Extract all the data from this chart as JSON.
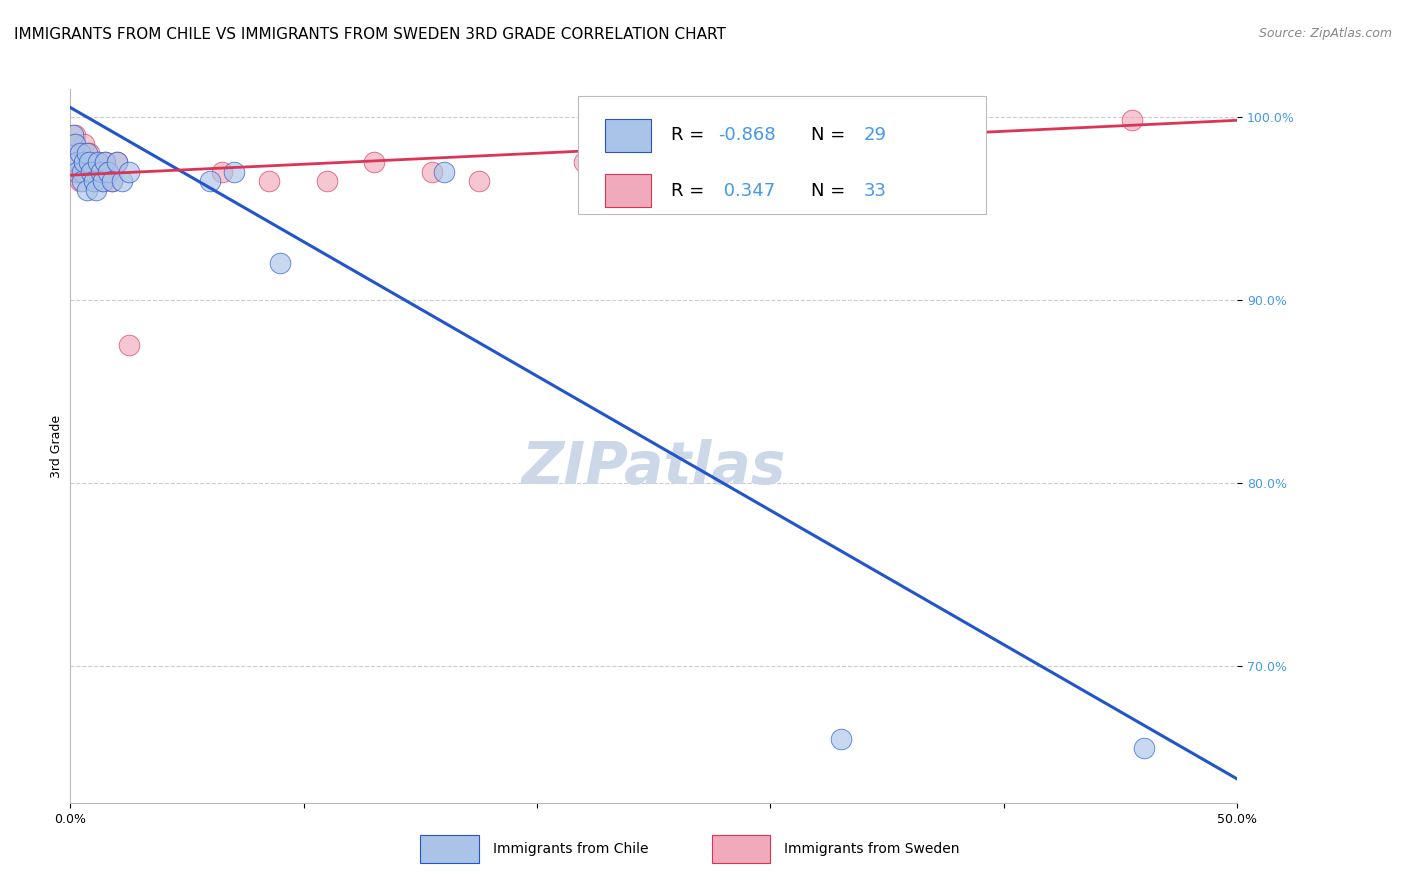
{
  "title": "IMMIGRANTS FROM CHILE VS IMMIGRANTS FROM SWEDEN 3RD GRADE CORRELATION CHART",
  "source": "Source: ZipAtlas.com",
  "ylabel": "3rd Grade",
  "xlim": [
    0.0,
    0.5
  ],
  "ylim": [
    0.625,
    1.015
  ],
  "yticks": [
    0.7,
    0.8,
    0.9,
    1.0
  ],
  "ytick_labels": [
    "70.0%",
    "80.0%",
    "90.0%",
    "100.0%"
  ],
  "xticks": [
    0.0,
    0.1,
    0.2,
    0.3,
    0.4,
    0.5
  ],
  "xtick_labels": [
    "0.0%",
    "",
    "",
    "",
    "",
    "50.0%"
  ],
  "chile_R": -0.868,
  "chile_N": 29,
  "sweden_R": 0.347,
  "sweden_N": 33,
  "chile_color": "#aac4e8",
  "sweden_color": "#f0aabb",
  "line_chile_color": "#2255cc",
  "line_sweden_color": "#dd3355",
  "watermark": "ZIPatlas",
  "chile_scatter_x": [
    0.001,
    0.002,
    0.003,
    0.003,
    0.004,
    0.005,
    0.005,
    0.006,
    0.007,
    0.007,
    0.008,
    0.009,
    0.01,
    0.011,
    0.012,
    0.013,
    0.014,
    0.015,
    0.016,
    0.018,
    0.02,
    0.022,
    0.025,
    0.06,
    0.07,
    0.09,
    0.16,
    0.33,
    0.46
  ],
  "chile_scatter_y": [
    0.99,
    0.985,
    0.975,
    0.97,
    0.98,
    0.97,
    0.965,
    0.975,
    0.98,
    0.96,
    0.975,
    0.97,
    0.965,
    0.96,
    0.975,
    0.97,
    0.965,
    0.975,
    0.97,
    0.965,
    0.975,
    0.965,
    0.97,
    0.965,
    0.97,
    0.92,
    0.97,
    0.66,
    0.655
  ],
  "sweden_scatter_x": [
    0.001,
    0.002,
    0.003,
    0.004,
    0.004,
    0.005,
    0.006,
    0.007,
    0.008,
    0.009,
    0.01,
    0.011,
    0.012,
    0.014,
    0.015,
    0.016,
    0.018,
    0.02,
    0.025,
    0.065,
    0.085,
    0.11,
    0.13,
    0.155,
    0.175,
    0.22,
    0.245,
    0.27,
    0.3,
    0.315,
    0.335,
    0.355,
    0.455
  ],
  "sweden_scatter_y": [
    0.985,
    0.99,
    0.975,
    0.97,
    0.965,
    0.97,
    0.985,
    0.975,
    0.98,
    0.97,
    0.965,
    0.975,
    0.97,
    0.965,
    0.975,
    0.97,
    0.965,
    0.975,
    0.875,
    0.97,
    0.965,
    0.965,
    0.975,
    0.97,
    0.965,
    0.975,
    0.97,
    0.965,
    0.975,
    0.97,
    0.975,
    0.97,
    0.998
  ],
  "chile_line_x": [
    0.0,
    0.5
  ],
  "chile_line_y": [
    1.005,
    0.638
  ],
  "sweden_line_x": [
    0.0,
    0.5
  ],
  "sweden_line_y": [
    0.968,
    0.998
  ],
  "grid_color": "#cccccc",
  "background_color": "#ffffff",
  "title_fontsize": 11,
  "axis_label_fontsize": 9,
  "tick_fontsize": 9,
  "legend_fontsize": 13,
  "watermark_fontsize": 42,
  "watermark_color": "#ccd8e8",
  "source_fontsize": 9,
  "bottom_legend_labels": [
    "Immigrants from Chile",
    "Immigrants from Sweden"
  ]
}
